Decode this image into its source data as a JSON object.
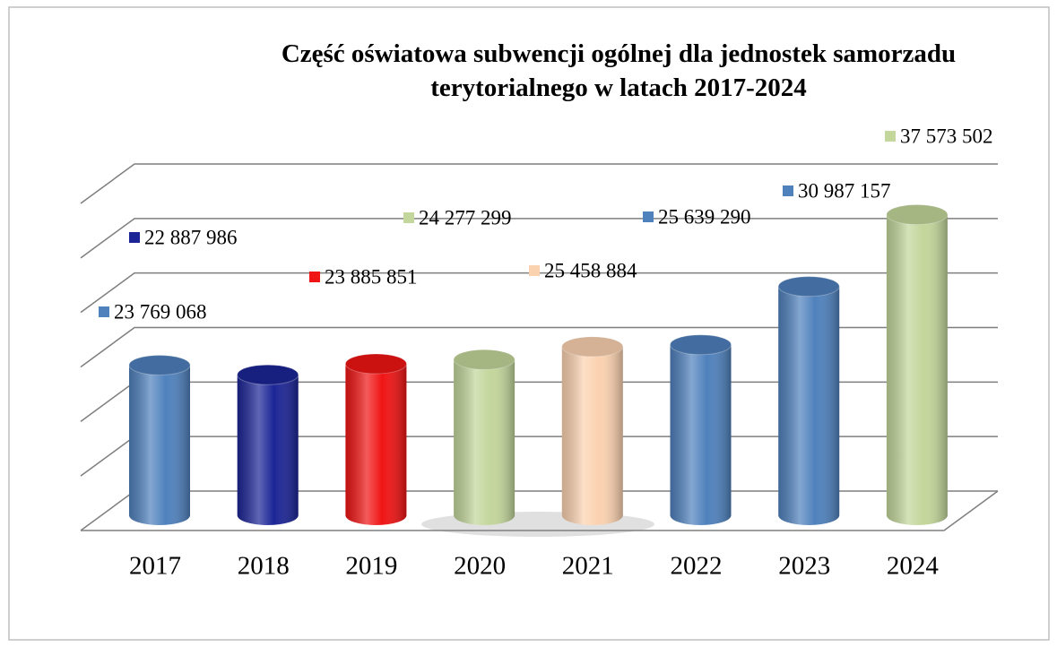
{
  "chart_data": {
    "type": "bar3d",
    "title": "Część oświatowa subwencji ogólnej dla jednostek samorzadu terytorialnego w latach 2017-2024",
    "categories": [
      "2017",
      "2018",
      "2019",
      "2020",
      "2021",
      "2022",
      "2023",
      "2024"
    ],
    "values": [
      23769068,
      22887986,
      23885851,
      24277299,
      25458884,
      25639290,
      30987157,
      37573502
    ],
    "value_labels": [
      "23 769 068",
      "22 887 986",
      "23 885 851",
      "24 277 299",
      "25 458 884",
      "25 639 290",
      "30 987 157",
      "37 573 502"
    ],
    "colors": [
      "#4f81bd",
      "#1c2596",
      "#f01414",
      "#c3d69b",
      "#fbd2b0",
      "#4f81bd",
      "#4f81bd",
      "#c3d69b"
    ],
    "ylim": [
      10000000,
      40000000
    ],
    "yticks": [
      10000000,
      15000000,
      20000000,
      25000000,
      30000000,
      35000000,
      40000000
    ],
    "grid": true
  }
}
